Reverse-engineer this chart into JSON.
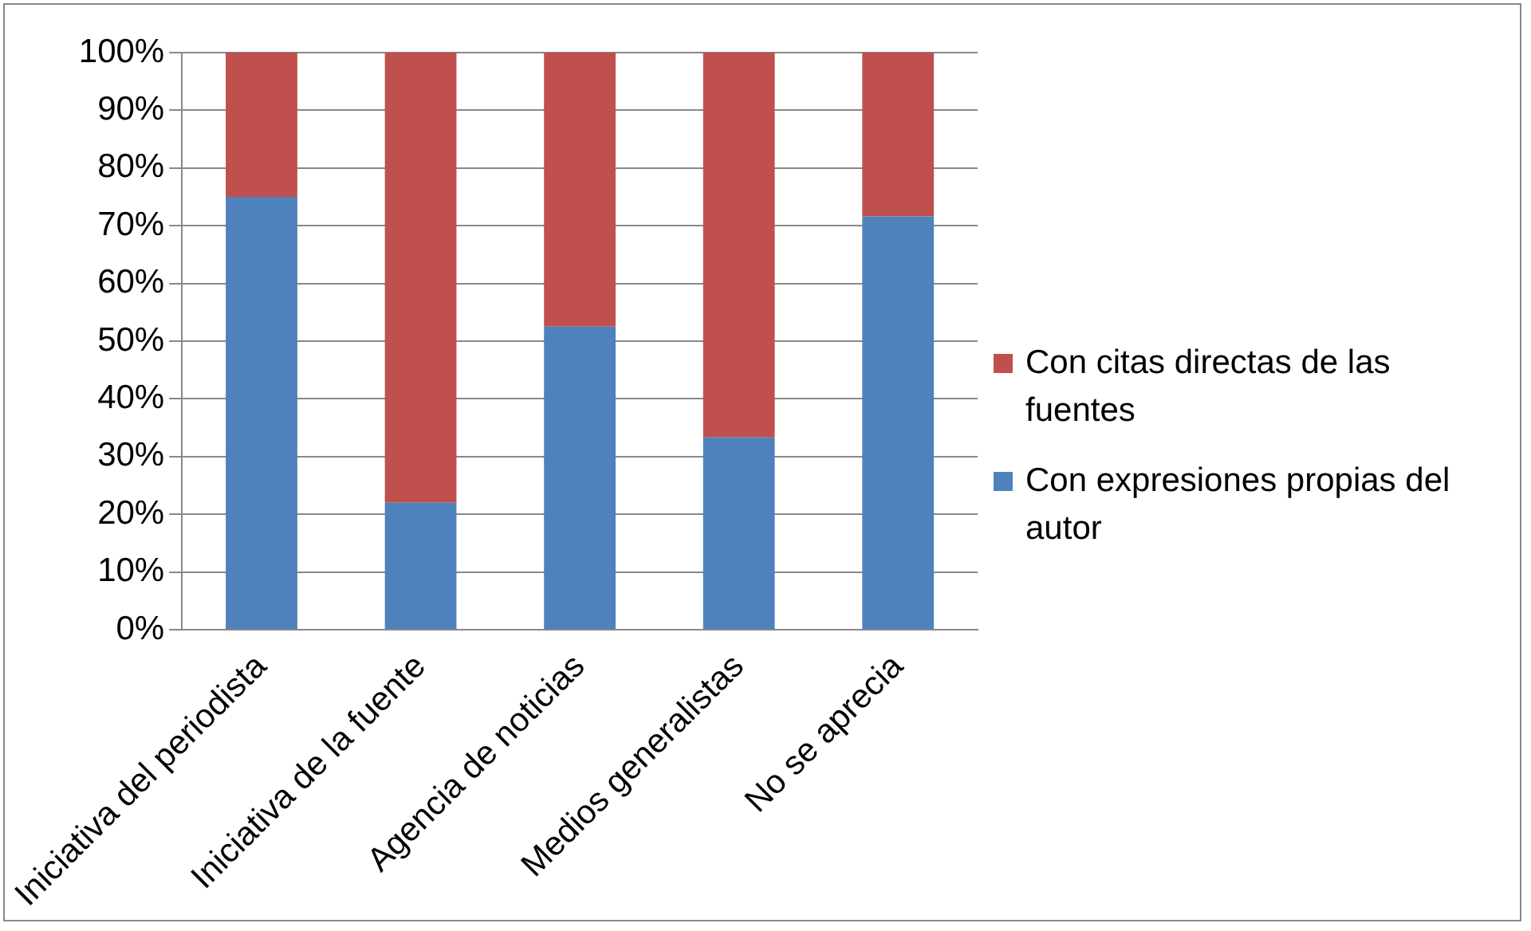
{
  "chart_data": {
    "type": "bar",
    "stacked": true,
    "categories": [
      "Iniciativa del periodista",
      "Iniciativa de la fuente",
      "Agencia de noticias",
      "Medios generalistas",
      "No se aprecia"
    ],
    "series": [
      {
        "name": "Con expresiones propias del autor",
        "color": "#4f81bd",
        "values": [
          75,
          22,
          52.5,
          33.3,
          71.6
        ]
      },
      {
        "name": "Con citas directas de las fuentes",
        "color": "#c0504d",
        "values": [
          25,
          78,
          47.5,
          66.7,
          28.4
        ]
      }
    ],
    "ylim": [
      0,
      100
    ],
    "yticks": [
      {
        "value": 0,
        "label": "0%"
      },
      {
        "value": 10,
        "label": "10%"
      },
      {
        "value": 20,
        "label": "20%"
      },
      {
        "value": 30,
        "label": "30%"
      },
      {
        "value": 40,
        "label": "40%"
      },
      {
        "value": 50,
        "label": "50%"
      },
      {
        "value": 60,
        "label": "60%"
      },
      {
        "value": 70,
        "label": "70%"
      },
      {
        "value": 80,
        "label": "80%"
      },
      {
        "value": 90,
        "label": "90%"
      },
      {
        "value": 100,
        "label": "100%"
      }
    ],
    "grid": "y",
    "legend": "right"
  }
}
